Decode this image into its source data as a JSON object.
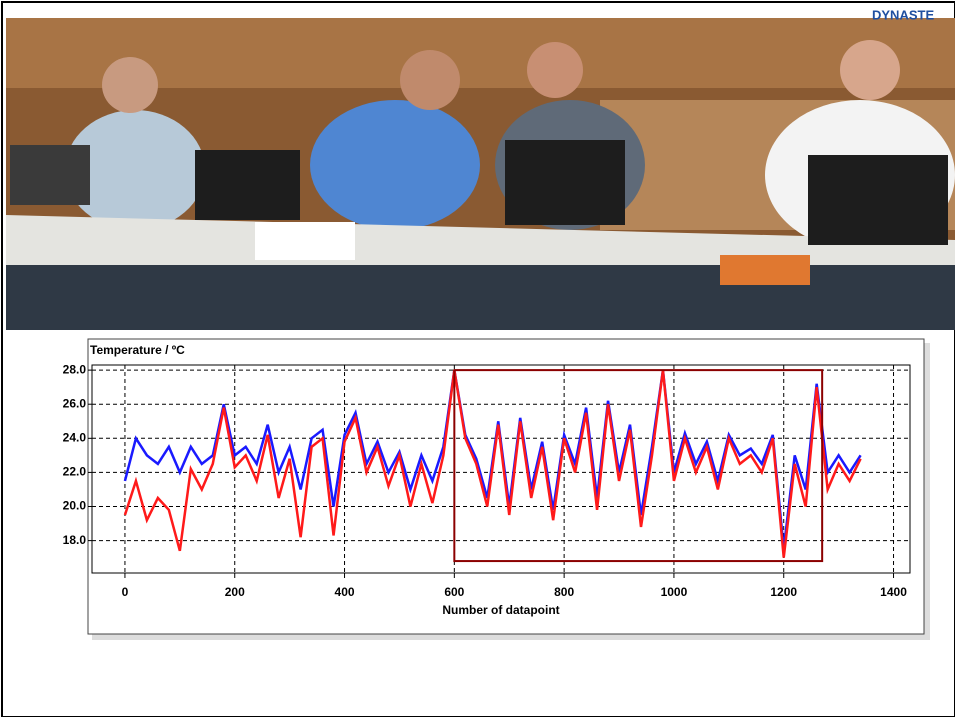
{
  "header": {
    "brand": "DYNASTE"
  },
  "chart_data": {
    "type": "line",
    "ylabel": "Temperature / ºC",
    "xlabel": "Number of datapoint",
    "x": [
      0,
      20,
      40,
      60,
      80,
      100,
      120,
      140,
      160,
      180,
      200,
      220,
      240,
      260,
      280,
      300,
      320,
      340,
      360,
      380,
      400,
      420,
      440,
      460,
      480,
      500,
      520,
      540,
      560,
      580,
      600,
      620,
      640,
      660,
      680,
      700,
      720,
      740,
      760,
      780,
      800,
      820,
      840,
      860,
      880,
      900,
      920,
      940,
      960,
      980,
      1000,
      1020,
      1040,
      1060,
      1080,
      1100,
      1120,
      1140,
      1160,
      1180,
      1200,
      1220,
      1240,
      1260,
      1280,
      1300,
      1320,
      1340
    ],
    "series": [
      {
        "color": "#1a1aff",
        "values": [
          21.5,
          24.0,
          23.0,
          22.5,
          23.5,
          22.0,
          23.5,
          22.5,
          23.0,
          26.0,
          23.0,
          23.5,
          22.5,
          24.8,
          22.0,
          23.5,
          21.0,
          24.0,
          24.5,
          20.0,
          24.2,
          25.5,
          22.5,
          23.8,
          22.0,
          23.2,
          21.0,
          23.0,
          21.5,
          23.5,
          28.0,
          24.2,
          22.8,
          20.5,
          25.0,
          20.0,
          25.2,
          21.0,
          23.8,
          19.8,
          24.2,
          22.5,
          25.8,
          20.5,
          26.2,
          22.0,
          24.8,
          19.5,
          23.5,
          28.0,
          22.0,
          24.3,
          22.5,
          23.8,
          21.5,
          24.2,
          23.0,
          23.4,
          22.5,
          24.2,
          17.5,
          23.0,
          21.0,
          27.2,
          22.0,
          23.0,
          22.0,
          23.0
        ]
      },
      {
        "color": "#ff1a1a",
        "values": [
          19.5,
          21.5,
          19.2,
          20.5,
          19.8,
          17.4,
          22.2,
          21.0,
          22.5,
          25.8,
          22.3,
          23.0,
          21.5,
          24.2,
          20.5,
          22.8,
          18.2,
          23.5,
          24.0,
          18.3,
          23.8,
          25.2,
          22.0,
          23.5,
          21.2,
          23.0,
          20.0,
          22.5,
          20.2,
          23.0,
          28.0,
          24.0,
          22.5,
          20.0,
          24.8,
          19.5,
          25.0,
          20.5,
          23.5,
          19.2,
          24.0,
          22.0,
          25.5,
          19.8,
          26.0,
          21.5,
          24.5,
          18.8,
          23.0,
          28.0,
          21.5,
          24.0,
          22.0,
          23.5,
          21.0,
          24.0,
          22.5,
          23.0,
          22.0,
          24.0,
          17.0,
          22.5,
          20.0,
          27.0,
          21.0,
          22.5,
          21.5,
          22.8
        ]
      }
    ],
    "xlim": [
      -60,
      1430
    ],
    "ylim": [
      16.1,
      28.3
    ],
    "xticks": [
      0,
      200,
      400,
      600,
      800,
      1000,
      1200,
      1400
    ],
    "yticks": [
      {
        "value": 18,
        "label": "18.0"
      },
      {
        "value": 20,
        "label": "20.0"
      },
      {
        "value": 22,
        "label": "22.0"
      },
      {
        "value": 24,
        "label": "24.0"
      },
      {
        "value": 26,
        "label": "26.0"
      },
      {
        "value": 28,
        "label": "28.0"
      }
    ],
    "grid": true,
    "highlight": {
      "x": [
        600,
        1270
      ],
      "y": [
        16.8,
        28
      ],
      "color": "#8b0000"
    }
  }
}
